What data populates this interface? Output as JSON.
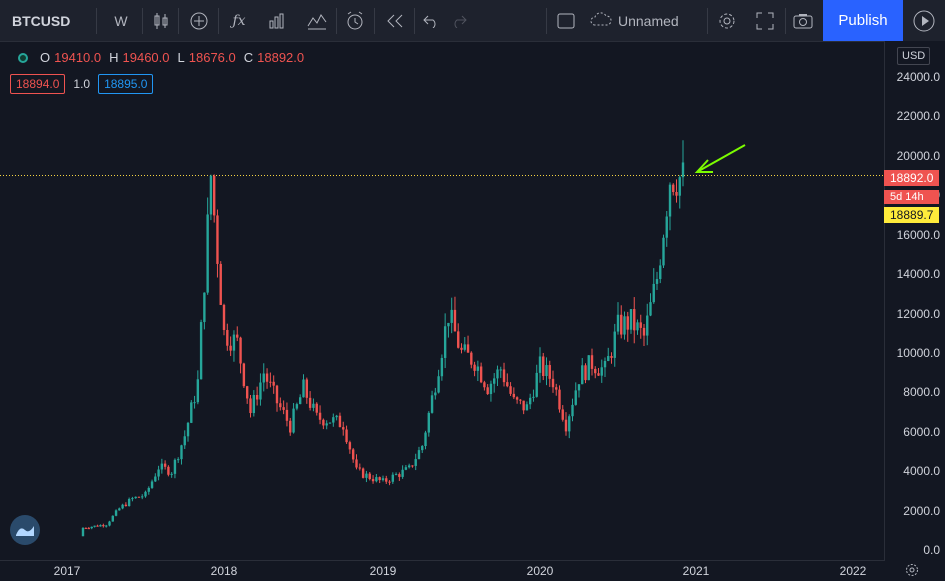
{
  "toolbar": {
    "symbol": "BTCUSD",
    "interval": "W",
    "layout_name": "Unnamed",
    "publish_label": "Publish"
  },
  "legend": {
    "open_label": "O",
    "open": "19410.0",
    "high_label": "H",
    "high": "19460.0",
    "low_label": "L",
    "low": "18676.0",
    "close_label": "C",
    "close": "18892.0"
  },
  "trade": {
    "sell": "18894.0",
    "qty": "1.0",
    "buy": "18895.0"
  },
  "price_axis": {
    "currency": "USD",
    "labels": [
      "24000.0",
      "22000.0",
      "20000.0",
      "18000.0",
      "16000.0",
      "14000.0",
      "12000.0",
      "10000.0",
      "8000.0",
      "6000.0",
      "4000.0",
      "2000.0",
      "0.0"
    ],
    "last_price": "18892.0",
    "countdown": "5d 14h",
    "crosshair_price": "18889.7"
  },
  "time_axis": {
    "labels": [
      "2017",
      "2018",
      "2019",
      "2020",
      "2021",
      "2022"
    ]
  },
  "colors": {
    "up": "#26a69a",
    "down": "#ef5350",
    "accent": "#2962ff",
    "annotation_arrow": "#7cfc00",
    "hline": "#f5d442"
  },
  "chart_data": {
    "type": "candlestick",
    "x_axis": [
      "2017",
      "2018",
      "2019",
      "2020",
      "2021",
      "2022"
    ],
    "ylim": [
      0,
      24000
    ],
    "horizontal_line": 19000,
    "closes": [
      [
        "2016-10",
        700
      ],
      [
        "2016-12",
        900
      ],
      [
        "2017-02",
        1100
      ],
      [
        "2017-04",
        1300
      ],
      [
        "2017-05",
        2100
      ],
      [
        "2017-06",
        2600
      ],
      [
        "2017-07",
        2800
      ],
      [
        "2017-08",
        4200
      ],
      [
        "2017-09",
        4000
      ],
      [
        "2017-10",
        5800
      ],
      [
        "2017-11",
        8500
      ],
      [
        "2017-12",
        19000
      ],
      [
        "2018-01",
        11000
      ],
      [
        "2018-02",
        10500
      ],
      [
        "2018-03",
        7000
      ],
      [
        "2018-04",
        9000
      ],
      [
        "2018-05",
        7500
      ],
      [
        "2018-06",
        6300
      ],
      [
        "2018-07",
        8200
      ],
      [
        "2018-08",
        6700
      ],
      [
        "2018-09",
        6600
      ],
      [
        "2018-10",
        6400
      ],
      [
        "2018-11",
        4000
      ],
      [
        "2018-12",
        3700
      ],
      [
        "2019-01",
        3450
      ],
      [
        "2019-02",
        3800
      ],
      [
        "2019-03",
        4100
      ],
      [
        "2019-04",
        5300
      ],
      [
        "2019-05",
        8500
      ],
      [
        "2019-06",
        12000
      ],
      [
        "2019-07",
        10000
      ],
      [
        "2019-08",
        9600
      ],
      [
        "2019-09",
        8300
      ],
      [
        "2019-10",
        9200
      ],
      [
        "2019-11",
        7500
      ],
      [
        "2019-12",
        7200
      ],
      [
        "2020-01",
        9300
      ],
      [
        "2020-02",
        8600
      ],
      [
        "2020-03",
        6400
      ],
      [
        "2020-04",
        8800
      ],
      [
        "2020-05",
        9500
      ],
      [
        "2020-06",
        9100
      ],
      [
        "2020-07",
        11300
      ],
      [
        "2020-08",
        11600
      ],
      [
        "2020-09",
        10800
      ],
      [
        "2020-10",
        13800
      ],
      [
        "2020-11",
        18900
      ],
      [
        "2020-12",
        18892
      ]
    ]
  }
}
